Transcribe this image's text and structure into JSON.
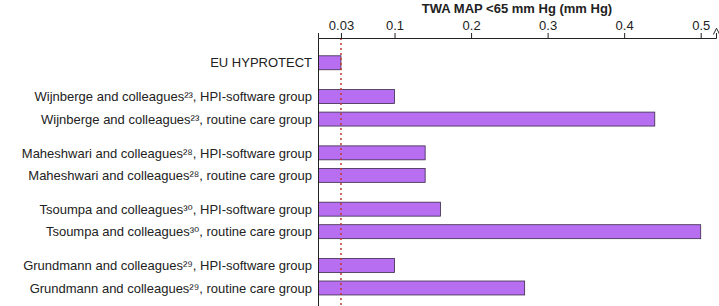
{
  "chart_data": {
    "type": "bar",
    "orientation": "horizontal",
    "x_label": "TWA MAP <65 mm Hg (mm Hg)",
    "categories": [
      "EU HYPROTECT",
      null,
      "Wijnberge and colleagues²³, HPI-software group",
      "Wijnberge and colleagues²³, routine care group",
      null,
      "Maheshwari and colleagues²⁸, HPI-software group",
      "Maheshwari and colleagues²⁸, routine care group",
      null,
      "Tsoumpa and colleagues³⁰, HPI-software group",
      "Tsoumpa and colleagues³⁰, routine care group",
      null,
      "Grundmann and colleagues²⁹, HPI-software group",
      "Grundmann and colleagues²⁹, routine care group"
    ],
    "values": [
      0.03,
      null,
      0.1,
      0.44,
      null,
      0.14,
      0.14,
      null,
      0.16,
      0.5,
      null,
      0.1,
      0.27
    ],
    "color": "#b76ef0",
    "xlim": [
      0,
      0.52
    ],
    "xticks": [
      0.03,
      0.1,
      0.2,
      0.3,
      0.4,
      0.5
    ],
    "grid": false,
    "reference_line": {
      "value": 0.03,
      "color": "#c0392b",
      "line_style": "dotted"
    }
  }
}
